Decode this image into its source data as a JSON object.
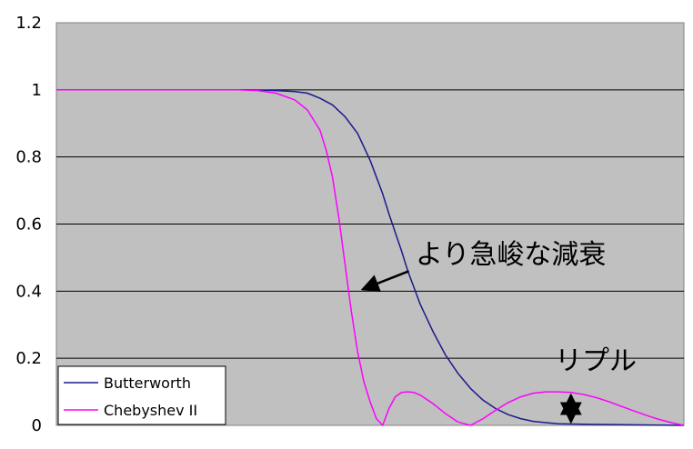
{
  "chart_data": {
    "type": "line",
    "ylim": [
      0,
      1.2
    ],
    "yticks": [
      "1.2",
      "1",
      "0.8",
      "0.6",
      "0.4",
      "0.2",
      "0"
    ],
    "yticks_values": [
      1.2,
      1,
      0.8,
      0.6,
      0.4,
      0.2,
      0
    ],
    "xlim": [
      0,
      100
    ],
    "grid": true,
    "legend_position": "bottom-left",
    "series": [
      {
        "name": "Butterworth",
        "color": "#1a1a8c",
        "x": [
          0,
          20,
          30,
          35,
          38,
          40,
          42,
          44,
          46,
          48,
          49,
          50,
          51,
          52,
          53,
          54,
          55,
          56,
          57,
          58,
          60,
          62,
          64,
          66,
          68,
          70,
          72,
          74,
          76,
          78,
          80,
          85,
          90,
          95,
          100
        ],
        "values": [
          1.0,
          1.0,
          1.0,
          0.998,
          0.995,
          0.99,
          0.975,
          0.955,
          0.92,
          0.87,
          0.83,
          0.79,
          0.74,
          0.69,
          0.63,
          0.575,
          0.52,
          0.46,
          0.41,
          0.36,
          0.28,
          0.21,
          0.155,
          0.11,
          0.075,
          0.05,
          0.032,
          0.02,
          0.012,
          0.008,
          0.005,
          0.003,
          0.002,
          0.001,
          0.0
        ]
      },
      {
        "name": "Chebyshev II",
        "color": "#ff00ff",
        "x": [
          0,
          20,
          29,
          32,
          35,
          38,
          40,
          42,
          43,
          44,
          45,
          46,
          47,
          48,
          49,
          50,
          51,
          52,
          53,
          54,
          55,
          56,
          57,
          58,
          60,
          62,
          64,
          66,
          68,
          70,
          72,
          74,
          76,
          78,
          80,
          82,
          84,
          86,
          88,
          90,
          92,
          94,
          96,
          98,
          100
        ],
        "values": [
          1.0,
          1.0,
          1.0,
          0.998,
          0.99,
          0.97,
          0.94,
          0.88,
          0.82,
          0.74,
          0.62,
          0.48,
          0.34,
          0.22,
          0.13,
          0.07,
          0.02,
          0.0,
          0.05,
          0.085,
          0.098,
          0.1,
          0.098,
          0.09,
          0.065,
          0.035,
          0.01,
          0.0,
          0.02,
          0.045,
          0.068,
          0.085,
          0.096,
          0.1,
          0.1,
          0.098,
          0.092,
          0.083,
          0.071,
          0.057,
          0.043,
          0.03,
          0.018,
          0.008,
          0.0
        ]
      }
    ],
    "annotations": [
      {
        "text": "より急峻な減衰",
        "target": {
          "x": 48.2,
          "y": 0.4
        }
      },
      {
        "text": "リプル",
        "target": {
          "x": 82,
          "y": 0.1
        }
      }
    ]
  }
}
